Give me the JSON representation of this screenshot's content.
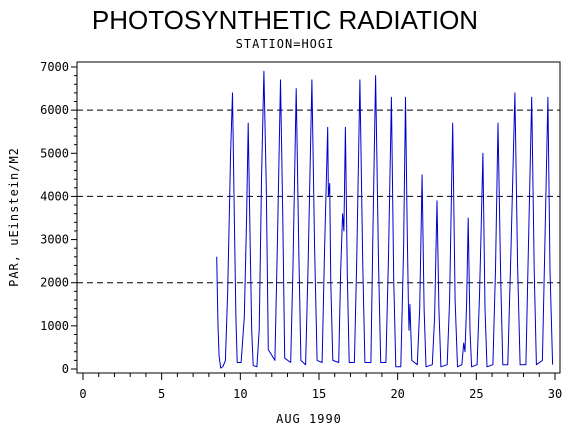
{
  "chart_data": {
    "type": "line",
    "title": "PHOTOSYNTHETIC RADIATION",
    "subtitle": "STATION=HOGI",
    "xlabel": "AUG 1990",
    "ylabel": "PAR, uEinstein/M2",
    "xlim": [
      0,
      30
    ],
    "ylim": [
      0,
      7000
    ],
    "x_ticks": [
      0,
      5,
      10,
      15,
      20,
      25,
      30
    ],
    "y_ticks": [
      0,
      1000,
      2000,
      3000,
      4000,
      5000,
      6000,
      7000
    ],
    "reference_lines": [
      2000,
      4000,
      6000
    ],
    "line_color": "#0000cc",
    "series": [
      {
        "values": [
          [
            8.5,
            2600
          ],
          [
            8.58,
            1000
          ],
          [
            8.65,
            300
          ],
          [
            8.75,
            20
          ],
          [
            8.9,
            60
          ],
          [
            9.05,
            200
          ],
          [
            9.2,
            1800
          ],
          [
            9.38,
            5000
          ],
          [
            9.5,
            6400
          ],
          [
            9.6,
            4000
          ],
          [
            9.72,
            1200
          ],
          [
            9.8,
            150
          ],
          [
            10.05,
            150
          ],
          [
            10.25,
            1200
          ],
          [
            10.4,
            3500
          ],
          [
            10.5,
            5700
          ],
          [
            10.6,
            3400
          ],
          [
            10.72,
            900
          ],
          [
            10.82,
            80
          ],
          [
            11.05,
            50
          ],
          [
            11.2,
            900
          ],
          [
            11.35,
            4500
          ],
          [
            11.5,
            6900
          ],
          [
            11.65,
            4200
          ],
          [
            11.78,
            450
          ],
          [
            12.2,
            200
          ],
          [
            12.35,
            2800
          ],
          [
            12.55,
            6700
          ],
          [
            12.7,
            3500
          ],
          [
            12.82,
            250
          ],
          [
            13.2,
            150
          ],
          [
            13.35,
            2400
          ],
          [
            13.55,
            6500
          ],
          [
            13.72,
            2600
          ],
          [
            13.85,
            200
          ],
          [
            14.15,
            100
          ],
          [
            14.3,
            2300
          ],
          [
            14.55,
            6700
          ],
          [
            14.72,
            2800
          ],
          [
            14.88,
            200
          ],
          [
            15.2,
            150
          ],
          [
            15.35,
            2700
          ],
          [
            15.55,
            5600
          ],
          [
            15.6,
            4000
          ],
          [
            15.68,
            4300
          ],
          [
            15.75,
            2000
          ],
          [
            15.88,
            200
          ],
          [
            16.25,
            150
          ],
          [
            16.38,
            2300
          ],
          [
            16.5,
            3600
          ],
          [
            16.58,
            3200
          ],
          [
            16.68,
            5600
          ],
          [
            16.8,
            2200
          ],
          [
            16.92,
            150
          ],
          [
            17.25,
            150
          ],
          [
            17.4,
            2600
          ],
          [
            17.6,
            6700
          ],
          [
            17.78,
            2500
          ],
          [
            17.92,
            150
          ],
          [
            18.3,
            150
          ],
          [
            18.42,
            3000
          ],
          [
            18.6,
            6800
          ],
          [
            18.78,
            2500
          ],
          [
            18.92,
            150
          ],
          [
            19.25,
            150
          ],
          [
            19.42,
            2600
          ],
          [
            19.6,
            6300
          ],
          [
            19.75,
            2100
          ],
          [
            19.88,
            50
          ],
          [
            20.2,
            50
          ],
          [
            20.38,
            2800
          ],
          [
            20.5,
            6300
          ],
          [
            20.6,
            3400
          ],
          [
            20.68,
            1500
          ],
          [
            20.72,
            900
          ],
          [
            20.78,
            1500
          ],
          [
            20.9,
            200
          ],
          [
            21.25,
            100
          ],
          [
            21.4,
            1400
          ],
          [
            21.55,
            4500
          ],
          [
            21.68,
            1400
          ],
          [
            21.8,
            50
          ],
          [
            22.2,
            100
          ],
          [
            22.35,
            1200
          ],
          [
            22.5,
            3900
          ],
          [
            22.62,
            1400
          ],
          [
            22.75,
            50
          ],
          [
            23.15,
            100
          ],
          [
            23.3,
            1600
          ],
          [
            23.5,
            5700
          ],
          [
            23.65,
            1600
          ],
          [
            23.8,
            50
          ],
          [
            24.08,
            100
          ],
          [
            24.2,
            600
          ],
          [
            24.28,
            400
          ],
          [
            24.38,
            1500
          ],
          [
            24.48,
            3500
          ],
          [
            24.6,
            900
          ],
          [
            24.7,
            50
          ],
          [
            25.05,
            100
          ],
          [
            25.2,
            1700
          ],
          [
            25.3,
            3200
          ],
          [
            25.42,
            5000
          ],
          [
            25.55,
            1400
          ],
          [
            25.68,
            50
          ],
          [
            26.05,
            100
          ],
          [
            26.22,
            2300
          ],
          [
            26.38,
            5700
          ],
          [
            26.55,
            2100
          ],
          [
            26.68,
            100
          ],
          [
            27.0,
            100
          ],
          [
            27.2,
            2700
          ],
          [
            27.45,
            6400
          ],
          [
            27.62,
            2400
          ],
          [
            27.78,
            100
          ],
          [
            28.15,
            100
          ],
          [
            28.3,
            2700
          ],
          [
            28.52,
            6300
          ],
          [
            28.68,
            2300
          ],
          [
            28.82,
            100
          ],
          [
            29.2,
            200
          ],
          [
            29.35,
            2800
          ],
          [
            29.55,
            6300
          ],
          [
            29.68,
            2300
          ],
          [
            29.85,
            100
          ]
        ]
      }
    ]
  }
}
